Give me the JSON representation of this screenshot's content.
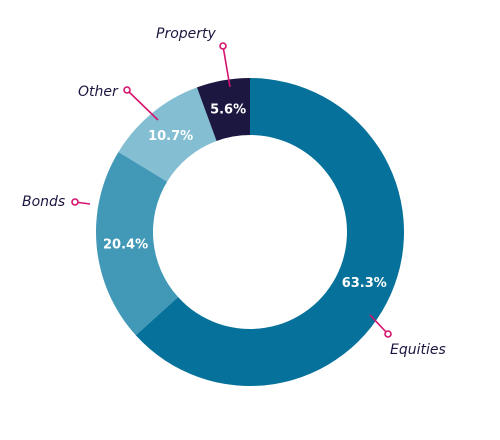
{
  "chart_data": {
    "type": "pie",
    "variant": "donut",
    "title": "",
    "categories": [
      "Equities",
      "Bonds",
      "Other",
      "Property"
    ],
    "values": [
      63.3,
      20.4,
      10.7,
      5.6
    ],
    "value_labels": [
      "63.3%",
      "20.4%",
      "10.7%",
      "5.6%"
    ],
    "unit": "%",
    "colors": [
      "#06719a",
      "#4298b7",
      "#84bed3",
      "#1c1740"
    ],
    "label_text_color": "#ffffff",
    "category_label_color": "#1c1740",
    "leader_line_color": "#d4136e",
    "start_angle_deg": 0,
    "direction": "clockwise",
    "legend": "none"
  }
}
